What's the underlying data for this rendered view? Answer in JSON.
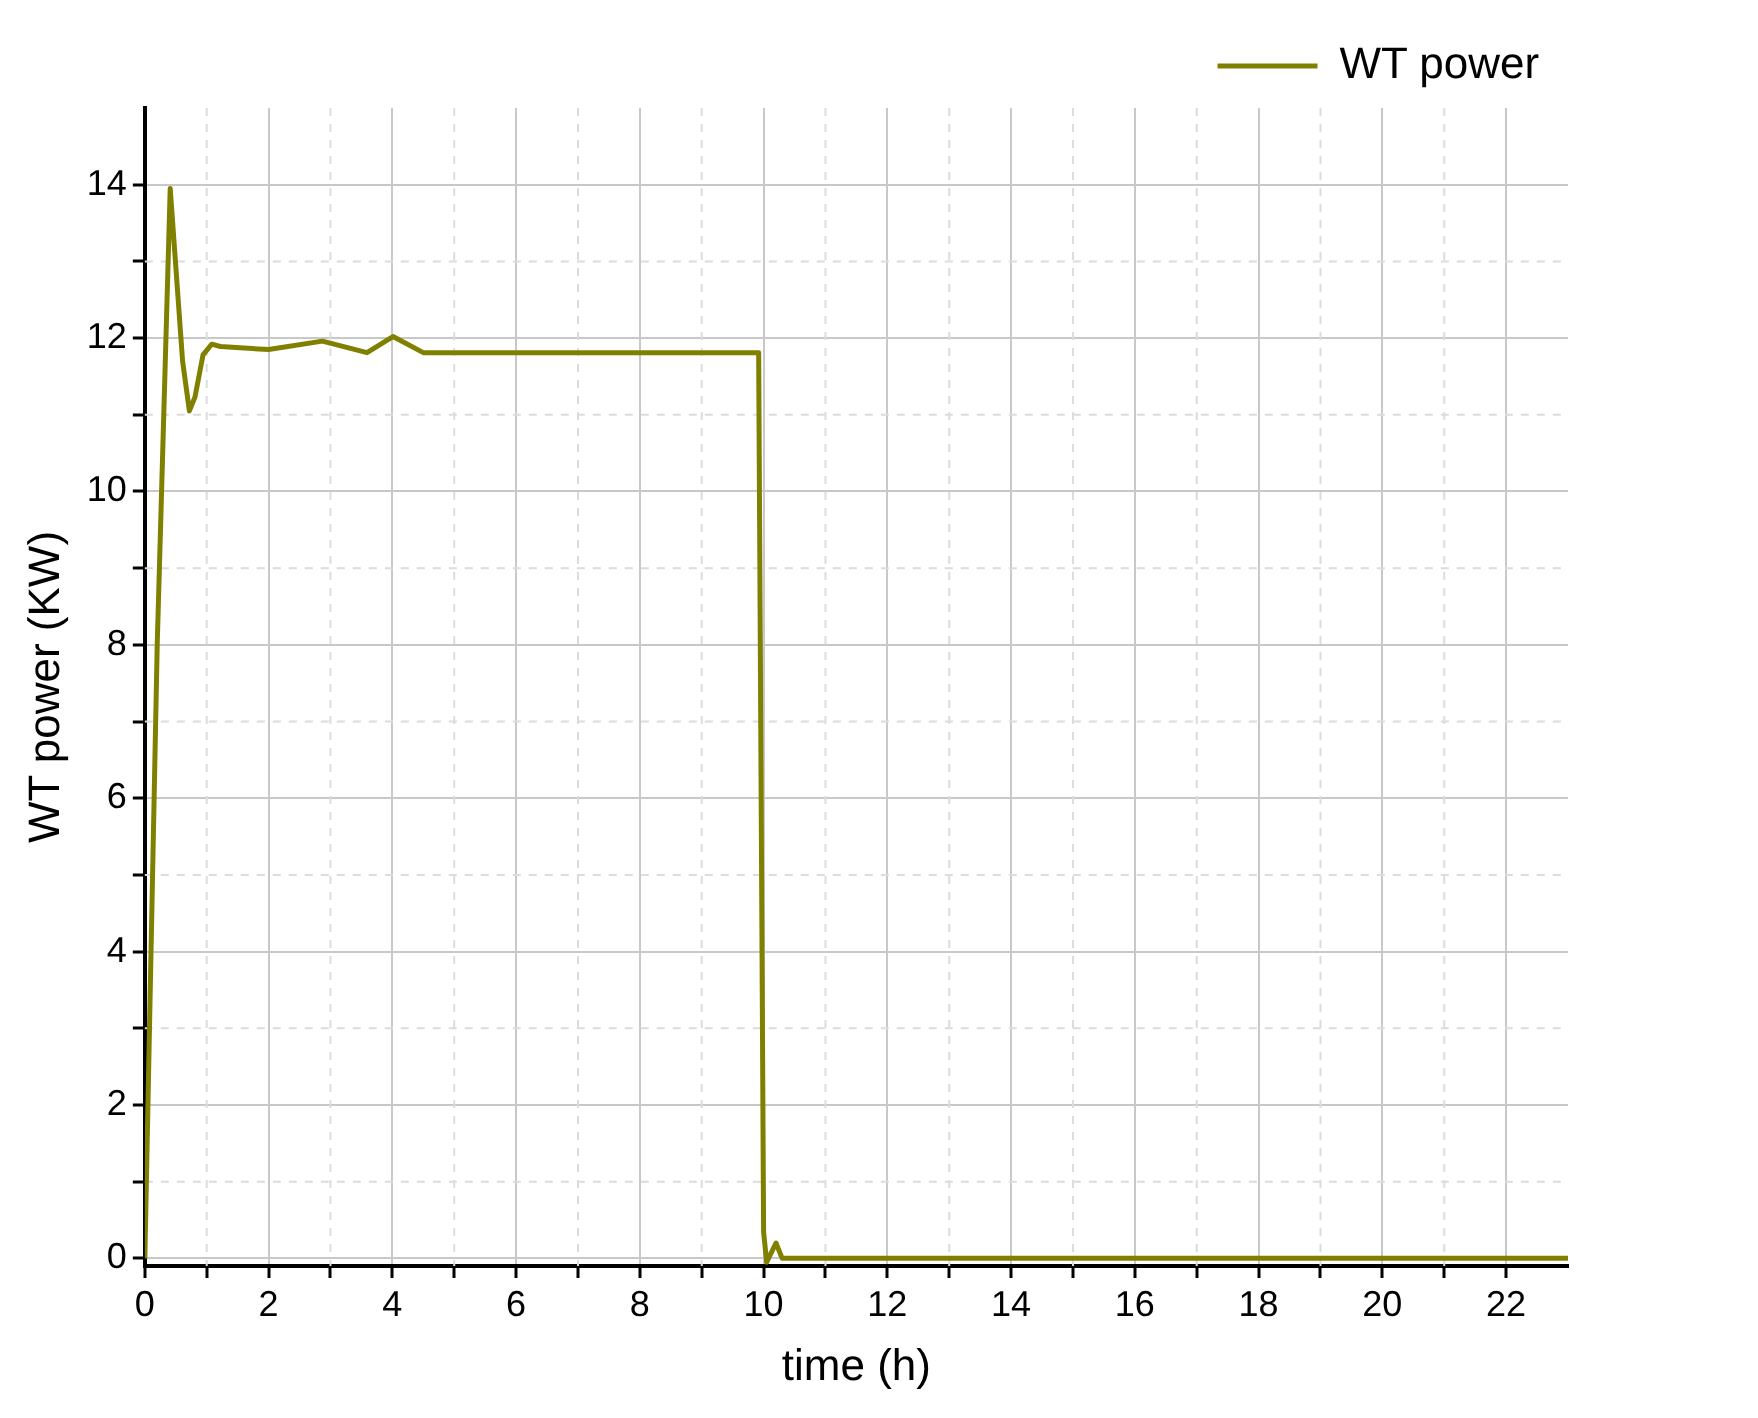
{
  "chart_data": {
    "type": "line",
    "xlabel": "time (h)",
    "ylabel": "WT power (KW)",
    "legend": "top right",
    "grid": true,
    "marker": "none",
    "line_style": "solid",
    "xlim": [
      0,
      23
    ],
    "ylim": [
      -0.1,
      15
    ],
    "xticks": [
      0,
      {
        "value": 1,
        "label": null
      },
      2,
      {
        "value": 3,
        "label": null
      },
      4,
      {
        "value": 5,
        "label": null
      },
      6,
      {
        "value": 7,
        "label": null
      },
      8,
      {
        "value": 9,
        "label": null
      },
      10,
      {
        "value": 11,
        "label": null
      },
      12,
      {
        "value": 13,
        "label": null
      },
      14,
      {
        "value": 15,
        "label": null
      },
      16,
      {
        "value": 17,
        "label": null
      },
      18,
      {
        "value": 19,
        "label": null
      },
      20,
      {
        "value": 21,
        "label": null
      },
      22
    ],
    "yticks": [
      0,
      {
        "value": 1,
        "label": null
      },
      2,
      {
        "value": 3,
        "label": null
      },
      4,
      {
        "value": 5,
        "label": null
      },
      6,
      {
        "value": 7,
        "label": null
      },
      8,
      {
        "value": 9,
        "label": null
      },
      10,
      {
        "value": 11,
        "label": null
      },
      12,
      {
        "value": 13,
        "label": null
      },
      14
    ],
    "series": [
      {
        "name": "WT power",
        "color": "#808000",
        "x": [
          0,
          0.2,
          0.41,
          0.61,
          0.72,
          0.81,
          0.94,
          1.08,
          1.22,
          2,
          2.87,
          3.59,
          4.01,
          4.5,
          9.92,
          10,
          10.05,
          10.2,
          10.3,
          23
        ],
        "values": [
          0,
          8,
          13.95,
          11.7,
          11.05,
          11.23,
          11.78,
          11.92,
          11.89,
          11.85,
          11.96,
          11.81,
          12.02,
          11.81,
          11.81,
          0.34,
          -0.05,
          0.2,
          0,
          0
        ]
      }
    ]
  }
}
